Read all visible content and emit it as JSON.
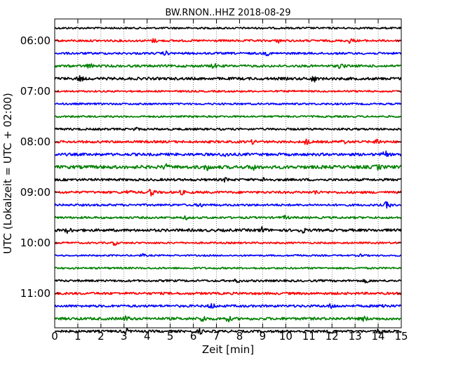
{
  "chart_data": {
    "type": "line",
    "title": "BW.RNON..HHZ 2018-08-29",
    "xlabel": "Zeit  [min]",
    "ylabel": "UTC (Lokalzeit = UTC + 02:00)",
    "xlim": [
      0,
      15
    ],
    "x_ticks": [
      "0",
      "1",
      "2",
      "3",
      "4",
      "5",
      "6",
      "7",
      "8",
      "9",
      "10",
      "11",
      "12",
      "13",
      "14",
      "15"
    ],
    "y_tick_labels": [
      "06:00",
      "07:00",
      "08:00",
      "09:00",
      "10:00",
      "11:00"
    ],
    "row_interval_minutes": 15,
    "trace_colors": [
      "#000000",
      "#ff0000",
      "#0000ff",
      "#008000"
    ],
    "grid": "vertical dotted at each minute",
    "traces": [
      {
        "start": "05:45",
        "amplitude": 0.3,
        "events": []
      },
      {
        "start": "06:00",
        "amplitude": 0.35,
        "events": [
          [
            4.3,
            0.5
          ],
          [
            9.7,
            0.5
          ],
          [
            12.8,
            0.7
          ]
        ]
      },
      {
        "start": "06:15",
        "amplitude": 0.35,
        "events": [
          [
            4.8,
            0.5
          ],
          [
            9.2,
            0.5
          ]
        ]
      },
      {
        "start": "06:30",
        "amplitude": 0.4,
        "events": [
          [
            1.5,
            0.7
          ],
          [
            6.9,
            0.6
          ],
          [
            12.4,
            0.8
          ]
        ]
      },
      {
        "start": "06:45",
        "amplitude": 0.45,
        "events": [
          [
            1.1,
            0.8
          ],
          [
            11.2,
            0.9
          ]
        ]
      },
      {
        "start": "07:00",
        "amplitude": 0.3,
        "events": []
      },
      {
        "start": "07:15",
        "amplitude": 0.3,
        "events": []
      },
      {
        "start": "07:30",
        "amplitude": 0.3,
        "events": []
      },
      {
        "start": "07:45",
        "amplitude": 0.35,
        "events": [
          [
            3.5,
            0.4
          ]
        ]
      },
      {
        "start": "08:00",
        "amplitude": 0.4,
        "events": [
          [
            8.6,
            0.5
          ],
          [
            10.9,
            0.7
          ],
          [
            12.5,
            0.5
          ],
          [
            14.0,
            0.9
          ]
        ]
      },
      {
        "start": "08:15",
        "amplitude": 0.45,
        "events": [
          [
            7.4,
            0.6
          ],
          [
            14.3,
            0.8
          ]
        ]
      },
      {
        "start": "08:30",
        "amplitude": 0.55,
        "events": [
          [
            4.8,
            0.6
          ],
          [
            6.6,
            0.8
          ],
          [
            8.6,
            0.8
          ],
          [
            14.0,
            0.6
          ]
        ]
      },
      {
        "start": "08:45",
        "amplitude": 0.4,
        "events": [
          [
            7.4,
            0.5
          ],
          [
            9.1,
            0.6
          ]
        ]
      },
      {
        "start": "09:00",
        "amplitude": 0.4,
        "events": [
          [
            4.2,
            1.2
          ],
          [
            3.2,
            0.6
          ],
          [
            5.5,
            0.5
          ],
          [
            11.3,
            0.5
          ]
        ]
      },
      {
        "start": "09:15",
        "amplitude": 0.35,
        "events": [
          [
            14.4,
            1.1
          ],
          [
            6.3,
            0.5
          ]
        ]
      },
      {
        "start": "09:30",
        "amplitude": 0.35,
        "events": [
          [
            5.7,
            0.4
          ],
          [
            10.0,
            0.5
          ]
        ]
      },
      {
        "start": "09:45",
        "amplitude": 0.45,
        "events": [
          [
            0.6,
            0.8
          ],
          [
            9.0,
            0.9
          ],
          [
            10.7,
            0.8
          ]
        ]
      },
      {
        "start": "10:00",
        "amplitude": 0.3,
        "events": [
          [
            2.6,
            0.6
          ]
        ]
      },
      {
        "start": "10:15",
        "amplitude": 0.25,
        "events": [
          [
            3.8,
            0.4
          ],
          [
            10.5,
            0.4
          ],
          [
            13.3,
            0.4
          ]
        ]
      },
      {
        "start": "10:30",
        "amplitude": 0.3,
        "events": []
      },
      {
        "start": "10:45",
        "amplitude": 0.35,
        "events": [
          [
            7.9,
            0.5
          ],
          [
            13.5,
            0.5
          ]
        ]
      },
      {
        "start": "11:00",
        "amplitude": 0.4,
        "events": []
      },
      {
        "start": "11:15",
        "amplitude": 0.4,
        "events": [
          [
            6.8,
            0.8
          ],
          [
            12.0,
            0.7
          ],
          [
            14.2,
            0.7
          ]
        ]
      },
      {
        "start": "11:30",
        "amplitude": 0.45,
        "events": [
          [
            3.1,
            0.7
          ],
          [
            6.4,
            1.0
          ],
          [
            7.5,
            0.7
          ],
          [
            13.4,
            0.6
          ]
        ]
      },
      {
        "start": "11:45",
        "amplitude": 0.4,
        "events": [
          [
            3.1,
            0.6
          ],
          [
            6.3,
            0.6
          ],
          [
            12.0,
            0.6
          ],
          [
            14.0,
            0.6
          ]
        ]
      }
    ]
  }
}
